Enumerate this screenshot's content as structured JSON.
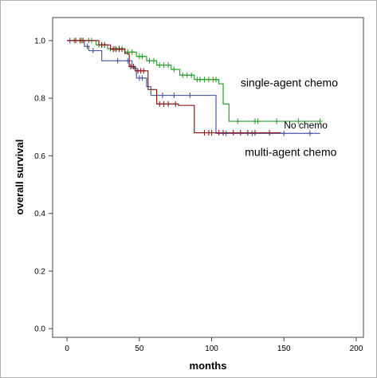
{
  "chart_data": {
    "type": "line",
    "step": true,
    "title": "",
    "xlabel": "months",
    "ylabel": "overall survival",
    "xlim": [
      -10,
      205
    ],
    "ylim": [
      -0.03,
      1.08
    ],
    "xticks": [
      0,
      50,
      100,
      150,
      200
    ],
    "yticks": [
      0.0,
      0.2,
      0.4,
      0.6,
      0.8,
      1.0
    ],
    "xtick_labels": [
      "0",
      "50",
      "100",
      "150",
      "200"
    ],
    "ytick_labels": [
      "0.0",
      "0.2",
      "0.4",
      "0.6",
      "0.8",
      "1.0"
    ],
    "grid": false,
    "legend": "none",
    "annotations": [
      {
        "text": "single-agent chemo",
        "x": 120,
        "y": 0.84,
        "size": 14
      },
      {
        "text": "No chemo",
        "x": 150,
        "y": 0.695,
        "size": 12
      },
      {
        "text": "multi-agent chemo",
        "x": 123,
        "y": 0.6,
        "size": 14
      }
    ],
    "series": [
      {
        "color": "#2ca02c",
        "steps": [
          [
            0,
            1.0
          ],
          [
            20,
            0.985
          ],
          [
            28,
            0.972
          ],
          [
            40,
            0.96
          ],
          [
            48,
            0.945
          ],
          [
            55,
            0.93
          ],
          [
            62,
            0.915
          ],
          [
            72,
            0.9
          ],
          [
            78,
            0.88
          ],
          [
            88,
            0.865
          ],
          [
            105,
            0.85
          ],
          [
            108,
            0.78
          ],
          [
            112,
            0.72
          ],
          [
            175,
            0.72
          ]
        ],
        "censored": [
          [
            5,
            1.0
          ],
          [
            10,
            1.0
          ],
          [
            15,
            1.0
          ],
          [
            17,
            1.0
          ],
          [
            22,
            0.985
          ],
          [
            24,
            0.985
          ],
          [
            30,
            0.972
          ],
          [
            33,
            0.972
          ],
          [
            36,
            0.972
          ],
          [
            42,
            0.96
          ],
          [
            45,
            0.96
          ],
          [
            50,
            0.945
          ],
          [
            52,
            0.945
          ],
          [
            57,
            0.93
          ],
          [
            60,
            0.93
          ],
          [
            64,
            0.915
          ],
          [
            67,
            0.915
          ],
          [
            70,
            0.915
          ],
          [
            74,
            0.9
          ],
          [
            80,
            0.88
          ],
          [
            83,
            0.88
          ],
          [
            86,
            0.88
          ],
          [
            90,
            0.865
          ],
          [
            92,
            0.865
          ],
          [
            95,
            0.865
          ],
          [
            98,
            0.865
          ],
          [
            101,
            0.865
          ],
          [
            103,
            0.865
          ],
          [
            118,
            0.72
          ],
          [
            130,
            0.72
          ],
          [
            132,
            0.72
          ],
          [
            145,
            0.72
          ],
          [
            160,
            0.72
          ],
          [
            175,
            0.72
          ]
        ]
      },
      {
        "color": "#4a5aa8",
        "steps": [
          [
            0,
            1.0
          ],
          [
            12,
            0.98
          ],
          [
            15,
            0.965
          ],
          [
            24,
            0.93
          ],
          [
            45,
            0.905
          ],
          [
            48,
            0.87
          ],
          [
            55,
            0.84
          ],
          [
            58,
            0.81
          ],
          [
            102,
            0.81
          ],
          [
            103,
            0.678
          ],
          [
            175,
            0.678
          ]
        ],
        "censored": [
          [
            2,
            1.0
          ],
          [
            14,
            0.98
          ],
          [
            18,
            0.965
          ],
          [
            35,
            0.93
          ],
          [
            42,
            0.93
          ],
          [
            50,
            0.87
          ],
          [
            52,
            0.87
          ],
          [
            66,
            0.81
          ],
          [
            74,
            0.81
          ],
          [
            85,
            0.81
          ],
          [
            110,
            0.678
          ],
          [
            128,
            0.678
          ],
          [
            150,
            0.678
          ],
          [
            168,
            0.678
          ]
        ]
      },
      {
        "color": "#8b1a1a",
        "steps": [
          [
            0,
            1.0
          ],
          [
            22,
            0.985
          ],
          [
            30,
            0.97
          ],
          [
            40,
            0.955
          ],
          [
            43,
            0.91
          ],
          [
            47,
            0.895
          ],
          [
            56,
            0.83
          ],
          [
            62,
            0.78
          ],
          [
            77,
            0.775
          ],
          [
            83,
            0.775
          ],
          [
            88,
            0.68
          ],
          [
            148,
            0.68
          ]
        ],
        "censored": [
          [
            6,
            1.0
          ],
          [
            9,
            1.0
          ],
          [
            11,
            1.0
          ],
          [
            24,
            0.985
          ],
          [
            26,
            0.985
          ],
          [
            32,
            0.97
          ],
          [
            34,
            0.97
          ],
          [
            36,
            0.97
          ],
          [
            38,
            0.97
          ],
          [
            44,
            0.91
          ],
          [
            46,
            0.91
          ],
          [
            49,
            0.895
          ],
          [
            51,
            0.895
          ],
          [
            53,
            0.895
          ],
          [
            64,
            0.78
          ],
          [
            67,
            0.78
          ],
          [
            70,
            0.78
          ],
          [
            75,
            0.78
          ],
          [
            95,
            0.68
          ],
          [
            98,
            0.68
          ],
          [
            100,
            0.68
          ],
          [
            105,
            0.68
          ],
          [
            108,
            0.68
          ],
          [
            115,
            0.68
          ],
          [
            120,
            0.68
          ],
          [
            125,
            0.68
          ],
          [
            130,
            0.68
          ],
          [
            140,
            0.68
          ]
        ]
      }
    ]
  }
}
